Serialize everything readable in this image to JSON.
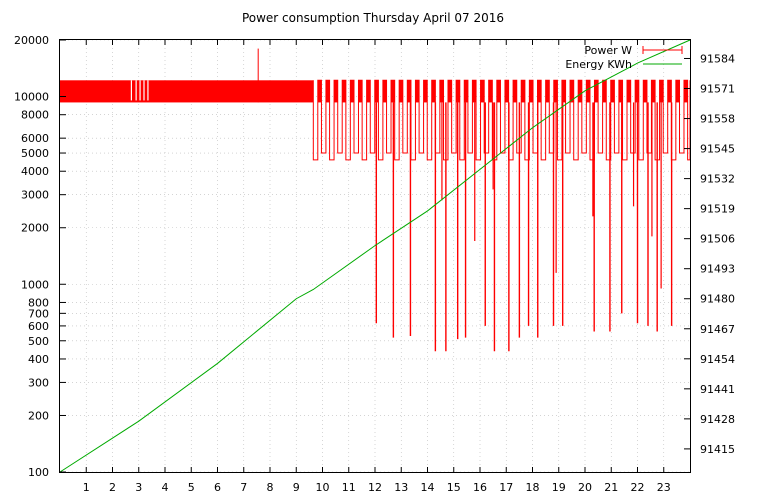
{
  "chart_data": {
    "type": "line",
    "title": "Power consumption Thursday April 07 2016",
    "x": {
      "range": [
        0,
        24
      ],
      "ticks": [
        1,
        2,
        3,
        4,
        5,
        6,
        7,
        8,
        9,
        10,
        11,
        12,
        13,
        14,
        15,
        16,
        17,
        18,
        19,
        20,
        21,
        22,
        23
      ],
      "tick_labels": [
        "1",
        "2",
        "3",
        "4",
        "5",
        "6",
        "7",
        "8",
        "9",
        "10",
        "11",
        "12",
        "13",
        "14",
        "15",
        "16",
        "17",
        "18",
        "19",
        "20",
        "21",
        "22",
        "23"
      ]
    },
    "y_left": {
      "scale": "log",
      "range": [
        100,
        20000
      ],
      "ticks": [
        100,
        200,
        300,
        400,
        500,
        600,
        700,
        800,
        1000,
        2000,
        3000,
        4000,
        5000,
        6000,
        8000,
        10000,
        20000
      ],
      "tick_labels": [
        "100",
        "200",
        "300",
        "400",
        "500",
        "600",
        "700",
        "800",
        "1000",
        "2000",
        "3000",
        "4000",
        "5000",
        "6000",
        "8000",
        "10000",
        "20000"
      ]
    },
    "y_right": {
      "scale": "linear",
      "range": [
        91405,
        91592
      ],
      "ticks": [
        91415,
        91428,
        91441,
        91454,
        91467,
        91480,
        91493,
        91506,
        91519,
        91532,
        91545,
        91558,
        91571,
        91584
      ],
      "tick_labels": [
        "91415",
        "91428",
        "91441",
        "91454",
        "91467",
        "91480",
        "91493",
        "91506",
        "91519",
        "91532",
        "91545",
        "91558",
        "91571",
        "91584"
      ]
    },
    "grid": true,
    "legend": {
      "placement": "top-right"
    },
    "series": [
      {
        "name": "Power W",
        "axis": "left",
        "color": "#ff0000",
        "band": {
          "low": 9300,
          "high": 12200
        },
        "dips_to_band_bottom": [
          2.72,
          2.9,
          3.05,
          3.2,
          3.35
        ],
        "dense_until": 9.65,
        "pulse_interval": 0.31,
        "low_level": [
          4600,
          5000
        ],
        "spike": {
          "x": 7.55,
          "value": 18000
        },
        "deep_dips": [
          {
            "x": 12.05,
            "value": 620
          },
          {
            "x": 12.7,
            "value": 520
          },
          {
            "x": 13.35,
            "value": 530
          },
          {
            "x": 14.3,
            "value": 440
          },
          {
            "x": 14.7,
            "value": 440
          },
          {
            "x": 15.15,
            "value": 510
          },
          {
            "x": 15.45,
            "value": 520
          },
          {
            "x": 16.2,
            "value": 600
          },
          {
            "x": 16.55,
            "value": 440
          },
          {
            "x": 17.1,
            "value": 440
          },
          {
            "x": 17.5,
            "value": 520
          },
          {
            "x": 17.85,
            "value": 600
          },
          {
            "x": 18.2,
            "value": 520
          },
          {
            "x": 18.8,
            "value": 600
          },
          {
            "x": 19.15,
            "value": 600
          },
          {
            "x": 20.35,
            "value": 560
          },
          {
            "x": 20.95,
            "value": 560
          },
          {
            "x": 21.4,
            "value": 700
          },
          {
            "x": 22.0,
            "value": 620
          },
          {
            "x": 22.4,
            "value": 600
          },
          {
            "x": 22.75,
            "value": 560
          },
          {
            "x": 23.3,
            "value": 600
          }
        ],
        "mid_dips": [
          {
            "x": 14.55,
            "value": 2800
          },
          {
            "x": 15.8,
            "value": 1700
          },
          {
            "x": 16.5,
            "value": 3200
          },
          {
            "x": 18.9,
            "value": 1150
          },
          {
            "x": 20.3,
            "value": 2300
          },
          {
            "x": 21.85,
            "value": 2600
          },
          {
            "x": 22.55,
            "value": 1800
          },
          {
            "x": 22.9,
            "value": 950
          }
        ]
      },
      {
        "name": "Energy KWh",
        "axis": "right",
        "color": "#00aa00",
        "points": [
          [
            0,
            91405
          ],
          [
            3,
            91427
          ],
          [
            6,
            91452
          ],
          [
            9,
            91480
          ],
          [
            9.65,
            91484
          ],
          [
            12,
            91503
          ],
          [
            14,
            91518
          ],
          [
            16,
            91536
          ],
          [
            18,
            91554
          ],
          [
            20,
            91570
          ],
          [
            22,
            91582
          ],
          [
            24,
            91592
          ]
        ]
      }
    ]
  }
}
